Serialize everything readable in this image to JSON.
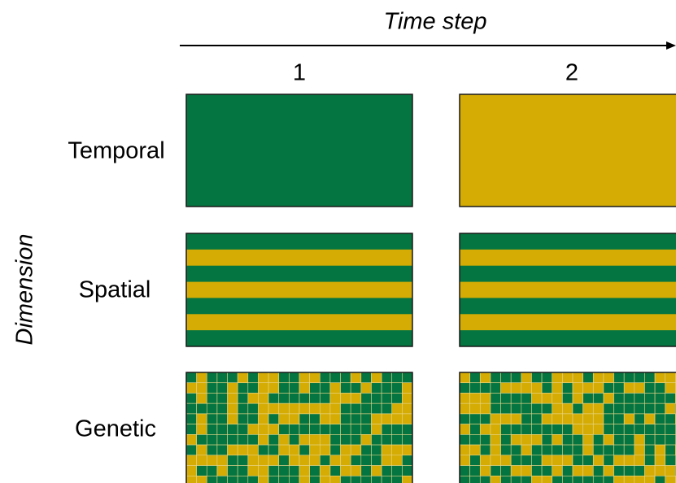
{
  "axis": {
    "title": "Time step"
  },
  "dimension_axis": {
    "title": "Dimension"
  },
  "columns": [
    "1",
    "2"
  ],
  "rows": [
    {
      "label": "Temporal",
      "pattern": "solid"
    },
    {
      "label": "Spatial",
      "pattern": "stripes"
    },
    {
      "label": "Genetic",
      "pattern": "checker"
    }
  ],
  "colors": {
    "green": "#047540",
    "gold": "#d4ac04",
    "outline": "#1a1a1a",
    "gridline": "#e8d68a"
  },
  "temporal_fill": [
    "green",
    "gold"
  ]
}
